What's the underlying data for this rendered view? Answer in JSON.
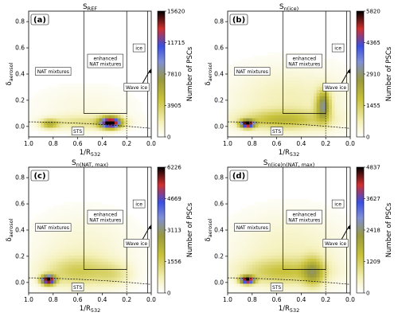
{
  "chart_data": [
    {
      "type": "heatmap",
      "panel_tag": "(a)",
      "title": "S",
      "title_sub": "REF",
      "xlabel": "1/R",
      "xlabel_sub": "532",
      "ylabel": "δ",
      "ylabel_sub": "aerosol",
      "xlim": [
        1.0,
        0.0
      ],
      "ylim": [
        -0.08,
        0.88
      ],
      "xticks": [
        "1.0",
        "0.8",
        "0.6",
        "0.4",
        "0.2",
        "0.0"
      ],
      "yticks": [
        "0.0",
        "0.2",
        "0.4",
        "0.6",
        "0.8"
      ],
      "colorbar_label": "Number of PSCs",
      "colorbar_ticks": [
        "0",
        "3905",
        "7810",
        "11715",
        "15620"
      ],
      "vmax": 15620,
      "blobs": [
        {
          "x": 0.83,
          "y": 0.02,
          "sx": 0.05,
          "sy": 0.025,
          "amp": 5000
        },
        {
          "x": 0.33,
          "y": 0.03,
          "sx": 0.06,
          "sy": 0.03,
          "amp": 15620
        },
        {
          "x": 0.55,
          "y": 0.03,
          "sx": 0.22,
          "sy": 0.04,
          "amp": 2500
        },
        {
          "x": 0.55,
          "y": 0.15,
          "sx": 0.3,
          "sy": 0.12,
          "amp": 800
        }
      ]
    },
    {
      "type": "heatmap",
      "panel_tag": "(b)",
      "title": "S",
      "title_sub": "n(ice)",
      "xlabel": "1/R",
      "xlabel_sub": "532",
      "ylabel": "δ",
      "ylabel_sub": "aerosol",
      "xlim": [
        1.0,
        0.0
      ],
      "ylim": [
        -0.08,
        0.88
      ],
      "xticks": [
        "1.0",
        "0.8",
        "0.6",
        "0.4",
        "0.2",
        "0.0"
      ],
      "yticks": [
        "0.0",
        "0.2",
        "0.4",
        "0.6",
        "0.8"
      ],
      "colorbar_label": "Number of PSCs",
      "colorbar_ticks": [
        "0",
        "1455",
        "2910",
        "4365",
        "5820"
      ],
      "vmax": 5820,
      "blobs": [
        {
          "x": 0.84,
          "y": 0.02,
          "sx": 0.04,
          "sy": 0.02,
          "amp": 5820
        },
        {
          "x": 0.22,
          "y": 0.16,
          "sx": 0.04,
          "sy": 0.08,
          "amp": 2600
        },
        {
          "x": 0.55,
          "y": 0.05,
          "sx": 0.25,
          "sy": 0.05,
          "amp": 1500
        },
        {
          "x": 0.5,
          "y": 0.2,
          "sx": 0.35,
          "sy": 0.18,
          "amp": 700
        }
      ]
    },
    {
      "type": "heatmap",
      "panel_tag": "(c)",
      "title": "S",
      "title_sub": "n(NAT, max)",
      "xlabel": "1/R",
      "xlabel_sub": "532",
      "ylabel": "δ",
      "ylabel_sub": "aerosol",
      "xlim": [
        1.0,
        0.0
      ],
      "ylim": [
        -0.08,
        0.88
      ],
      "xticks": [
        "1.0",
        "0.8",
        "0.6",
        "0.4",
        "0.2",
        "0.0"
      ],
      "yticks": [
        "0.0",
        "0.2",
        "0.4",
        "0.6",
        "0.8"
      ],
      "colorbar_label": "Number of PSCs",
      "colorbar_ticks": [
        "0",
        "1556",
        "3113",
        "4669",
        "6226"
      ],
      "vmax": 6226,
      "blobs": [
        {
          "x": 0.84,
          "y": 0.02,
          "sx": 0.04,
          "sy": 0.025,
          "amp": 6226
        },
        {
          "x": 0.6,
          "y": 0.08,
          "sx": 0.2,
          "sy": 0.08,
          "amp": 1300
        },
        {
          "x": 0.3,
          "y": 0.06,
          "sx": 0.1,
          "sy": 0.06,
          "amp": 700
        },
        {
          "x": 0.55,
          "y": 0.25,
          "sx": 0.3,
          "sy": 0.2,
          "amp": 500
        }
      ]
    },
    {
      "type": "heatmap",
      "panel_tag": "(d)",
      "title": "S",
      "title_sub": "n(ice)n(NAT, max)",
      "xlabel": "1/R",
      "xlabel_sub": "532",
      "ylabel": "δ",
      "ylabel_sub": "aerosol",
      "xlim": [
        1.0,
        0.0
      ],
      "ylim": [
        -0.08,
        0.88
      ],
      "xticks": [
        "1.0",
        "0.8",
        "0.6",
        "0.4",
        "0.2",
        "0.0"
      ],
      "yticks": [
        "0.0",
        "0.2",
        "0.4",
        "0.6",
        "0.8"
      ],
      "colorbar_label": "Number of PSCs",
      "colorbar_ticks": [
        "0",
        "1209",
        "2418",
        "3627",
        "4837"
      ],
      "vmax": 4837,
      "blobs": [
        {
          "x": 0.84,
          "y": 0.02,
          "sx": 0.04,
          "sy": 0.02,
          "amp": 4837
        },
        {
          "x": 0.3,
          "y": 0.08,
          "sx": 0.06,
          "sy": 0.08,
          "amp": 1400
        },
        {
          "x": 0.55,
          "y": 0.08,
          "sx": 0.25,
          "sy": 0.07,
          "amp": 1100
        },
        {
          "x": 0.5,
          "y": 0.25,
          "sx": 0.33,
          "sy": 0.2,
          "amp": 500
        }
      ]
    }
  ],
  "regions": {
    "nat_mixtures": "NAT mixtures",
    "enhanced_nat_line1": "enhanced",
    "enhanced_nat_line2": "NAT mixtures",
    "ice": "ice",
    "wave_ice": "Wave ice",
    "sts": "STS"
  },
  "colors": {
    "low": "#ffffff",
    "mid1": "#f4f0b8",
    "mid2": "#c8c23a",
    "mid3": "#9a9a3c",
    "mid4": "#7f8fd8",
    "mid5": "#3a4fe0",
    "high1": "#d03030",
    "high2": "#000000"
  }
}
